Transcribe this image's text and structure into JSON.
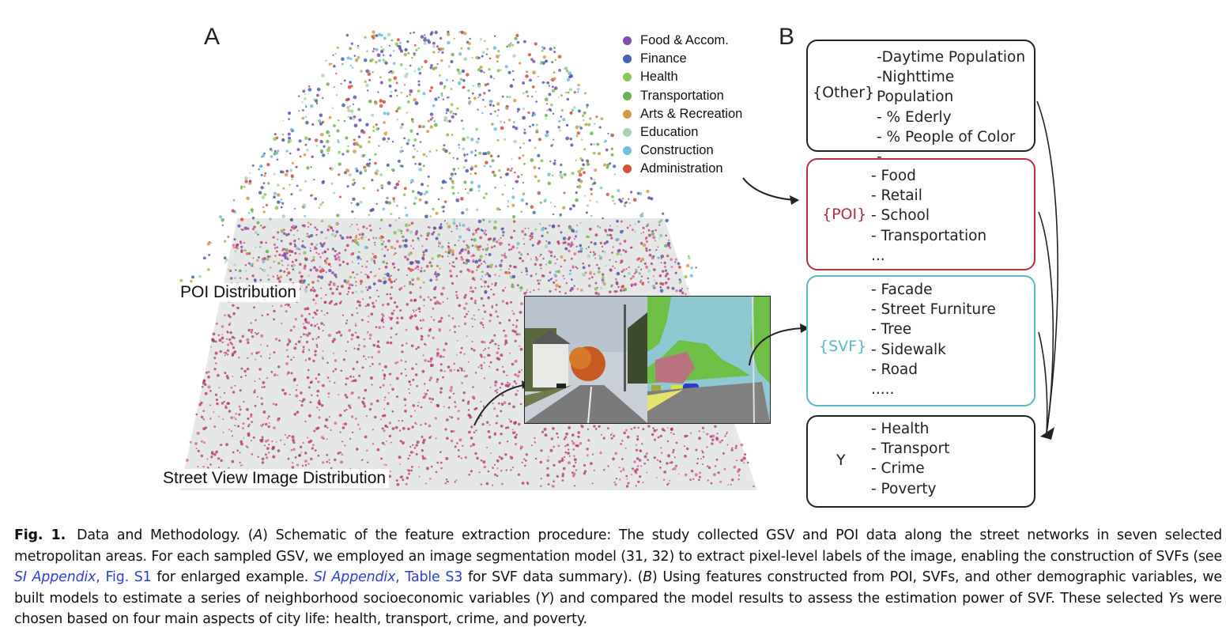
{
  "panel_a": {
    "letter": "A",
    "legend": [
      {
        "label": "Food & Accom.",
        "color": "#7a4fa8"
      },
      {
        "label": "Finance",
        "color": "#4a62b5"
      },
      {
        "label": "Health",
        "color": "#8cc65a"
      },
      {
        "label": "Transportation",
        "color": "#6ab24f"
      },
      {
        "label": "Arts & Recreation",
        "color": "#d59a45"
      },
      {
        "label": "Education",
        "color": "#a9d4b4"
      },
      {
        "label": "Construction",
        "color": "#6fc0d8"
      },
      {
        "label": "Administration",
        "color": "#d4503c"
      },
      {
        "label": "",
        "color": "#5455a6"
      }
    ],
    "poi_label": "POI Distribution",
    "svi_label": "Street View Image Distribution"
  },
  "panel_b": {
    "letter": "B",
    "boxes": [
      {
        "tag": "{Other}",
        "items": [
          "-Daytime Population",
          "-Nighttime Population",
          "- % Ederly",
          "- % People of Color",
          "-..."
        ]
      },
      {
        "tag": "{POI}",
        "items": [
          "- Food",
          "- Retail",
          "- School",
          "- Transportation",
          "..."
        ]
      },
      {
        "tag": "{SVF}",
        "items": [
          "- Facade",
          "- Street Furniture",
          "- Tree",
          "- Sidewalk",
          "- Road",
          "....."
        ]
      },
      {
        "tag": "Y",
        "items": [
          "- Health",
          "- Transport",
          "- Crime",
          "- Poverty"
        ]
      }
    ],
    "colors": {
      "other": "#222222",
      "poi": "#b5303f",
      "svf": "#5ab8cc",
      "y": "#222222"
    }
  },
  "caption": {
    "fig_label": "Fig. 1.",
    "t1": "Data and Methodology. (",
    "a": "A",
    "t2": ") Schematic of the feature extraction procedure: The study collected GSV and POI data along the street networks in seven selected metropolitan areas. For each sampled GSV, we employed an image segmentation model (31, 32) to extract pixel-level labels of the image, enabling the construction of SVFs (see ",
    "si1": "SI Appendix",
    "si1b": ", Fig. S1",
    "t3": " for enlarged example. ",
    "si2": "SI Appendix",
    "si2b": ", Table S3",
    "t4": " for SVF data summary). (",
    "b": "B",
    "t5": ") Using features constructed from POI, SVFs, and other demographic variables, we built models to estimate a series of neighborhood socioeconomic variables (",
    "y": "Y",
    "t6": ") and compared the model results to assess the estimation power of SVF. These selected ",
    "y2": "Y",
    "t7": "s were chosen based on four main aspects of city life: health, transport, crime, and poverty."
  }
}
